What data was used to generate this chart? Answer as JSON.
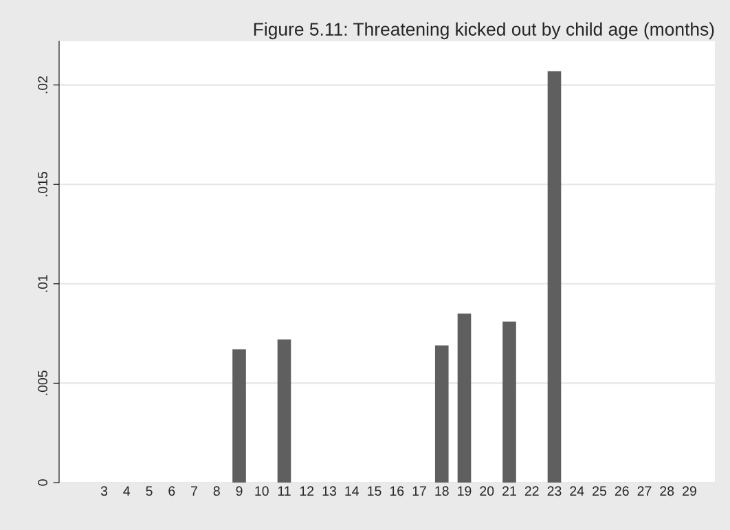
{
  "chart_data": {
    "type": "bar",
    "title": "Figure 5.11: Threatening kicked out by child age (months)",
    "categories": [
      "3",
      "4",
      "5",
      "6",
      "7",
      "8",
      "9",
      "10",
      "11",
      "12",
      "13",
      "14",
      "15",
      "16",
      "17",
      "18",
      "19",
      "20",
      "21",
      "22",
      "23",
      "24",
      "25",
      "26",
      "27",
      "28",
      "29"
    ],
    "values": [
      0,
      0,
      0,
      0,
      0,
      0,
      0.0067,
      0,
      0.0072,
      0,
      0,
      0,
      0,
      0,
      0,
      0.0069,
      0.0085,
      0,
      0.0081,
      0,
      0.0207,
      0,
      0,
      0,
      0,
      0,
      0
    ],
    "color": "#5f5f5f",
    "ylim": [
      0,
      0.0222
    ],
    "yticks": [
      {
        "value": 0,
        "label": "0"
      },
      {
        "value": 0.005,
        "label": ".005"
      },
      {
        "value": 0.01,
        "label": ".01"
      },
      {
        "value": 0.015,
        "label": ".015"
      },
      {
        "value": 0.02,
        "label": ".02"
      }
    ],
    "grid": "y"
  }
}
